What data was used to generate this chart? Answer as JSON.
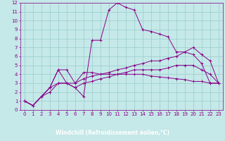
{
  "xlabel": "Windchill (Refroidissement éolien,°C)",
  "bg_color": "#c5e8e8",
  "line_color": "#880088",
  "grid_color": "#99cccc",
  "xlabel_bg": "#660066",
  "xlabel_fg": "#ffffff",
  "xlim": [
    -0.5,
    23.5
  ],
  "ylim": [
    0,
    12
  ],
  "xticks": [
    0,
    1,
    2,
    3,
    4,
    5,
    6,
    7,
    8,
    9,
    10,
    11,
    12,
    13,
    14,
    15,
    16,
    17,
    18,
    19,
    20,
    21,
    22,
    23
  ],
  "yticks": [
    0,
    1,
    2,
    3,
    4,
    5,
    6,
    7,
    8,
    9,
    10,
    11,
    12
  ],
  "series": [
    {
      "x": [
        0,
        1,
        2,
        3,
        4,
        5,
        6,
        7,
        8,
        9,
        10,
        11,
        12,
        13,
        14,
        15,
        16,
        17,
        18,
        19,
        20,
        21,
        22,
        23
      ],
      "y": [
        1.0,
        0.5,
        1.5,
        2.5,
        4.5,
        3.0,
        2.5,
        1.5,
        7.8,
        7.8,
        11.2,
        12.0,
        11.5,
        11.2,
        9.0,
        8.8,
        8.5,
        8.2,
        6.5,
        6.5,
        6.2,
        5.2,
        3.0,
        3.0
      ]
    },
    {
      "x": [
        0,
        1,
        2,
        3,
        4,
        5,
        6,
        7,
        8,
        9,
        10,
        11,
        12,
        13,
        14,
        15,
        16,
        17,
        18,
        19,
        20,
        21,
        22,
        23
      ],
      "y": [
        1.0,
        0.5,
        1.5,
        2.5,
        4.5,
        4.5,
        3.0,
        4.2,
        4.2,
        4.0,
        4.0,
        4.0,
        4.0,
        4.0,
        4.0,
        3.8,
        3.7,
        3.6,
        3.5,
        3.4,
        3.2,
        3.2,
        3.0,
        3.0
      ]
    },
    {
      "x": [
        0,
        1,
        2,
        3,
        4,
        5,
        6,
        7,
        8,
        9,
        10,
        11,
        12,
        13,
        14,
        15,
        16,
        17,
        18,
        19,
        20,
        21,
        22,
        23
      ],
      "y": [
        1.0,
        0.5,
        1.5,
        2.5,
        3.0,
        3.0,
        3.0,
        3.5,
        3.8,
        4.0,
        4.2,
        4.5,
        4.7,
        5.0,
        5.2,
        5.5,
        5.5,
        5.8,
        6.0,
        6.5,
        7.0,
        6.2,
        5.5,
        3.0
      ]
    },
    {
      "x": [
        0,
        1,
        2,
        3,
        4,
        5,
        6,
        7,
        8,
        9,
        10,
        11,
        12,
        13,
        14,
        15,
        16,
        17,
        18,
        19,
        20,
        21,
        22,
        23
      ],
      "y": [
        1.0,
        0.5,
        1.5,
        2.0,
        3.0,
        3.0,
        2.5,
        3.0,
        3.2,
        3.5,
        3.7,
        4.0,
        4.2,
        4.5,
        4.5,
        4.5,
        4.5,
        4.7,
        5.0,
        5.0,
        5.0,
        4.5,
        4.0,
        3.0
      ]
    }
  ]
}
